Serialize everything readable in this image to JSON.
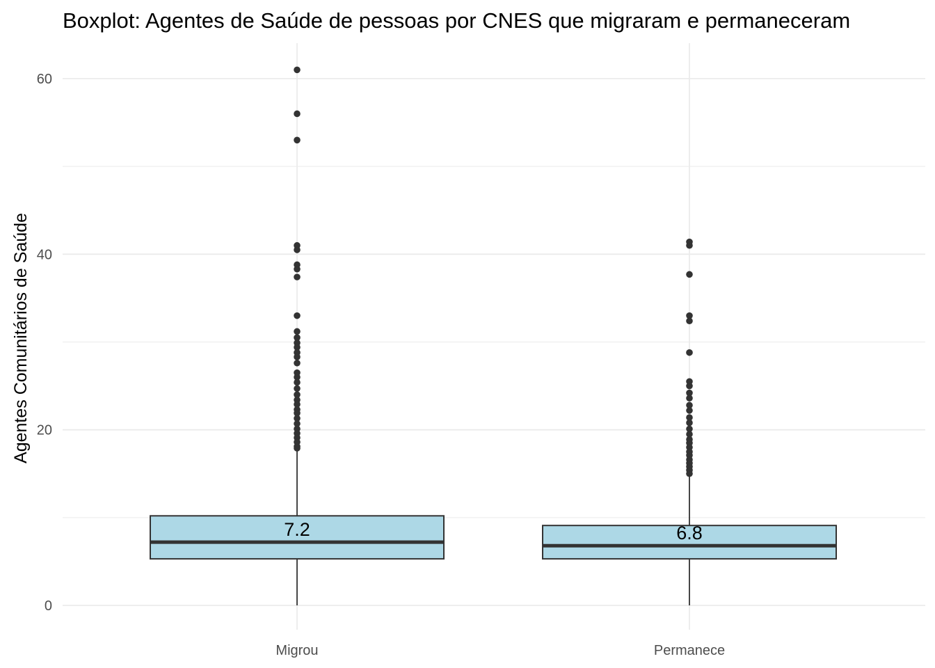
{
  "chart_data": {
    "type": "boxplot",
    "title": "Boxplot: Agentes de Saúde de pessoas por CNES que migraram e permaneceram",
    "xlabel": "",
    "ylabel": "Agentes Comunitários de Saúde",
    "ylim": [
      -4,
      64
    ],
    "yticks": [
      0,
      20,
      40,
      60
    ],
    "y_minor_ticks": [
      10,
      30,
      50
    ],
    "grid": true,
    "legend": "none",
    "categories": [
      "Migrou",
      "Permanece"
    ],
    "boxes": [
      {
        "category": "Migrou",
        "min": 0,
        "q1": 5.3,
        "median": 7.2,
        "q3": 10.2,
        "whisker_high": 17.7,
        "median_label": "7.2",
        "outliers": [
          61,
          56,
          53,
          41,
          40.5,
          38.8,
          38.3,
          37.4,
          33,
          31.2,
          30.5,
          29.9,
          29.4,
          28.8,
          28.3,
          27.6,
          26.5,
          26,
          25.4,
          24.7,
          24,
          23.4,
          22.9,
          22.3,
          21.9,
          21.3,
          20.7,
          20.1,
          19.6,
          19.1,
          18.6,
          18.1,
          17.9
        ]
      },
      {
        "category": "Permanece",
        "min": 0,
        "q1": 5.3,
        "median": 6.8,
        "q3": 9.1,
        "whisker_high": 14.8,
        "median_label": "6.8",
        "outliers": [
          41.4,
          41,
          37.7,
          33,
          32.4,
          28.8,
          25.5,
          25,
          24.2,
          23.6,
          22.8,
          22.2,
          21.4,
          20.8,
          20.1,
          19.5,
          18.9,
          18.5,
          18,
          17.5,
          17.1,
          16.6,
          16.2,
          15.8,
          15.4,
          15
        ]
      }
    ],
    "colors": {
      "box_fill": "#add8e6",
      "box_stroke": "#333333",
      "outlier": "#333333",
      "grid": "#ebebeb",
      "tick_text": "#4d4d4d"
    }
  }
}
